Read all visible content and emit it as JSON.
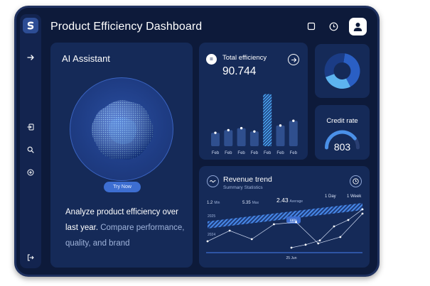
{
  "app": {
    "title": "Product Efficiency Dashboard"
  },
  "ai": {
    "title": "AI Assistant",
    "button": "Try Now",
    "text_highlight": "Analyze product efficiency over last year.",
    "text_rest": " Compare performance, quality, and brand"
  },
  "efficiency": {
    "title": "Total efficiency",
    "value": "90.744",
    "icon": "equals-icon"
  },
  "credit": {
    "title": "Credit rate",
    "value": "803",
    "fraction": 0.8
  },
  "revenue": {
    "title": "Revenue trend",
    "subtitle": "Summary Statistics",
    "stats": [
      {
        "value": "1.2",
        "unit": "Min"
      },
      {
        "value": "5.35",
        "unit": "Max"
      },
      {
        "value": "2.43",
        "unit": "Average"
      }
    ],
    "ranges": [
      "1 Day",
      "1 Week"
    ],
    "y_labels": [
      "2025",
      "2024"
    ],
    "bar_label": "66%",
    "date_label": "25 Jun"
  },
  "colors": {
    "accent": "#3d6ed1",
    "highlight": "#4aa8f0",
    "card": "#152a58",
    "background": "#0d1a3a"
  },
  "chart_data": [
    {
      "type": "bar",
      "categories": [
        "Feb",
        "Feb",
        "Feb",
        "Feb",
        "Feb",
        "Feb",
        "Feb"
      ],
      "values": [
        20,
        24,
        27,
        22,
        78,
        31,
        38
      ],
      "highlight_index": 4,
      "ylim": [
        0,
        85
      ]
    },
    {
      "type": "pie",
      "style": "donut",
      "slices": [
        {
          "value": 40,
          "color": "#2a5fc4"
        },
        {
          "value": 27,
          "color": "#5db4f0"
        },
        {
          "value": 33,
          "color": "#1b3c85"
        }
      ]
    },
    {
      "type": "line",
      "series": [
        {
          "values": [
            0.2,
            0.45,
            0.25,
            0.6,
            0.65,
            0.15,
            0.3,
            0.85
          ]
        },
        {
          "values": [
            0.05,
            0.12,
            0.22,
            0.55,
            0.7,
            0.95
          ]
        }
      ]
    }
  ]
}
